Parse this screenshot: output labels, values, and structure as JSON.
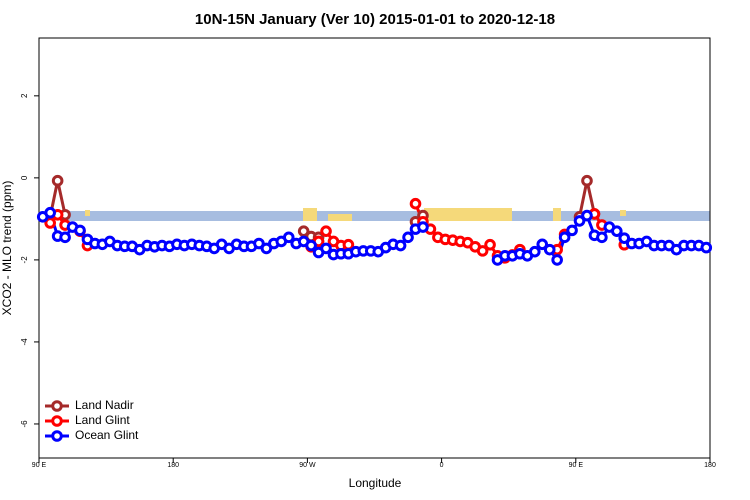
{
  "chart_data": {
    "type": "line",
    "title": "10N-15N January (Ver 10)   2015-01-01 to 2020-12-18",
    "x_label": "Longitude",
    "y_label": "XCO2 - MLO trend (ppm)",
    "xlim": [
      90,
      540
    ],
    "ylim": [
      -6.83,
      3.41
    ],
    "xticks": [
      {
        "value": 90,
        "label": "90 E"
      },
      {
        "value": 180,
        "label": "180"
      },
      {
        "value": 270,
        "label": "90 W"
      },
      {
        "value": 360,
        "label": "0"
      },
      {
        "value": 450,
        "label": "90 E"
      },
      {
        "value": 540,
        "label": "180"
      }
    ],
    "yticks": [
      -6,
      -4,
      -2,
      0,
      2
    ],
    "legend": "bottom left",
    "x": [
      92.5,
      97.5,
      102.5,
      107.5,
      112.5,
      117.5,
      122.5,
      127.5,
      132.5,
      137.5,
      142.5,
      147.5,
      152.5,
      157.5,
      162.5,
      167.5,
      172.5,
      177.5,
      182.5,
      187.5,
      192.5,
      197.5,
      202.5,
      207.5,
      212.5,
      217.5,
      222.5,
      227.5,
      232.5,
      237.5,
      242.5,
      247.5,
      252.5,
      257.5,
      262.5,
      267.5,
      272.5,
      277.5,
      282.5,
      287.5,
      292.5,
      297.5,
      302.5,
      307.5,
      312.5,
      317.5,
      322.5,
      327.5,
      332.5,
      337.5,
      342.5,
      347.5,
      352.5,
      357.5,
      362.5,
      367.5,
      372.5,
      377.5,
      382.5,
      387.5,
      392.5,
      397.5,
      402.5,
      407.5,
      412.5,
      417.5,
      422.5,
      427.5,
      432.5,
      437.5,
      442.5,
      447.5,
      452.5,
      457.5,
      462.5,
      467.5,
      472.5,
      477.5,
      482.5,
      487.5,
      492.5,
      497.5,
      502.5,
      507.5,
      512.5,
      517.5,
      522.5,
      527.5,
      532.5,
      537.5
    ],
    "series": [
      {
        "name": "Land Nadir",
        "color": "#a52a2a",
        "values": [
          null,
          -0.95,
          -0.07,
          -0.9,
          null,
          null,
          null,
          null,
          null,
          null,
          null,
          null,
          null,
          null,
          null,
          null,
          null,
          null,
          null,
          null,
          null,
          null,
          null,
          null,
          null,
          null,
          null,
          null,
          null,
          null,
          null,
          null,
          null,
          null,
          null,
          -1.3,
          -1.43,
          -1.45,
          null,
          null,
          null,
          null,
          null,
          null,
          null,
          null,
          null,
          null,
          null,
          null,
          -1.07,
          -0.92,
          null,
          null,
          null,
          null,
          null,
          null,
          null,
          null,
          null,
          null,
          null,
          null,
          null,
          null,
          null,
          null,
          null,
          null,
          null,
          null,
          -0.95,
          -0.07,
          -0.88,
          null,
          null,
          null,
          null,
          null,
          null,
          null,
          null,
          null,
          null,
          null,
          null,
          null,
          null,
          null
        ]
      },
      {
        "name": "Land Glint",
        "color": "#ff0000",
        "values": [
          null,
          -1.1,
          -0.9,
          -1.15,
          null,
          -1.3,
          -1.65,
          null,
          null,
          null,
          null,
          null,
          null,
          null,
          null,
          null,
          null,
          null,
          null,
          null,
          null,
          null,
          null,
          null,
          null,
          null,
          null,
          null,
          null,
          null,
          null,
          null,
          null,
          null,
          null,
          null,
          -1.68,
          -1.55,
          -1.3,
          -1.55,
          -1.65,
          -1.63,
          null,
          null,
          null,
          null,
          null,
          null,
          null,
          null,
          -0.63,
          -1.07,
          -1.25,
          -1.45,
          -1.5,
          -1.52,
          -1.55,
          -1.58,
          -1.68,
          -1.78,
          -1.63,
          -1.9,
          -1.95,
          -1.88,
          -1.75,
          null,
          null,
          null,
          null,
          -1.75,
          -1.38,
          null,
          null,
          null,
          -0.88,
          -1.15,
          null,
          null,
          -1.63,
          null,
          null,
          null,
          null,
          null,
          null,
          null,
          null,
          null,
          null,
          null
        ]
      },
      {
        "name": "Ocean Glint",
        "color": "#0000ff",
        "values": [
          -0.95,
          -0.85,
          -1.42,
          -1.45,
          -1.2,
          -1.28,
          -1.5,
          -1.6,
          -1.62,
          -1.55,
          -1.65,
          -1.67,
          -1.67,
          -1.75,
          -1.65,
          -1.68,
          -1.65,
          -1.67,
          -1.62,
          -1.65,
          -1.62,
          -1.65,
          -1.67,
          -1.72,
          -1.62,
          -1.72,
          -1.62,
          -1.67,
          -1.67,
          -1.6,
          -1.72,
          -1.6,
          -1.55,
          -1.45,
          -1.6,
          -1.55,
          -1.65,
          -1.82,
          -1.72,
          -1.87,
          -1.85,
          -1.85,
          -1.8,
          -1.78,
          -1.78,
          -1.8,
          -1.7,
          -1.62,
          -1.65,
          -1.45,
          -1.25,
          -1.2,
          null,
          null,
          null,
          null,
          null,
          null,
          null,
          null,
          null,
          -2.0,
          -1.9,
          -1.9,
          -1.85,
          -1.9,
          -1.8,
          -1.62,
          -1.75,
          -2.0,
          -1.45,
          -1.28,
          -1.05,
          -0.92,
          -1.4,
          -1.45,
          -1.2,
          -1.3,
          -1.47,
          -1.6,
          -1.6,
          -1.55,
          -1.65,
          -1.65,
          -1.65,
          -1.75,
          -1.65,
          -1.65,
          -1.65,
          -1.7
        ]
      }
    ]
  }
}
